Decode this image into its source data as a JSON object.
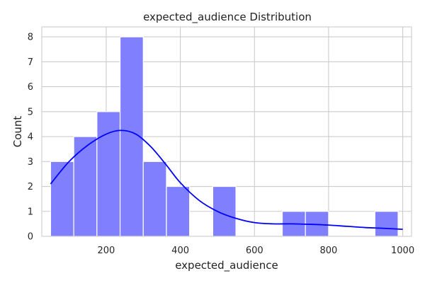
{
  "chart_data": {
    "type": "bar",
    "title": "expected_audience Distribution",
    "xlabel": "expected_audience",
    "ylabel": "Count",
    "xlim": [
      26.25,
      1023.75
    ],
    "ylim": [
      0,
      8.4
    ],
    "x_ticks": [
      200,
      400,
      600,
      800,
      1000
    ],
    "y_ticks": [
      0,
      1,
      2,
      3,
      4,
      5,
      6,
      7,
      8
    ],
    "grid": true,
    "bins": [
      {
        "start": 50,
        "end": 112.5,
        "count": 3
      },
      {
        "start": 112.5,
        "end": 175,
        "count": 4
      },
      {
        "start": 175,
        "end": 237.5,
        "count": 5
      },
      {
        "start": 237.5,
        "end": 300,
        "count": 8
      },
      {
        "start": 300,
        "end": 362.5,
        "count": 3
      },
      {
        "start": 362.5,
        "end": 425,
        "count": 2
      },
      {
        "start": 425,
        "end": 487.5,
        "count": 0
      },
      {
        "start": 487.5,
        "end": 550,
        "count": 2
      },
      {
        "start": 550,
        "end": 612.5,
        "count": 0
      },
      {
        "start": 612.5,
        "end": 675,
        "count": 0
      },
      {
        "start": 675,
        "end": 737.5,
        "count": 1
      },
      {
        "start": 737.5,
        "end": 800,
        "count": 1
      },
      {
        "start": 800,
        "end": 862.5,
        "count": 0
      },
      {
        "start": 862.5,
        "end": 925,
        "count": 0
      },
      {
        "start": 925,
        "end": 987.5,
        "count": 1
      }
    ],
    "kde": {
      "x": [
        50,
        100,
        150,
        200,
        240,
        280,
        320,
        360,
        400,
        450,
        500,
        550,
        600,
        650,
        700,
        750,
        800,
        850,
        900,
        950,
        1000
      ],
      "y": [
        2.1,
        3.0,
        3.65,
        4.1,
        4.25,
        4.1,
        3.6,
        2.9,
        2.15,
        1.45,
        1.0,
        0.72,
        0.55,
        0.5,
        0.5,
        0.48,
        0.45,
        0.4,
        0.35,
        0.32,
        0.28
      ]
    },
    "colors": {
      "bar_fill": "#8080ff",
      "bar_edge": "#ffffff",
      "kde_line": "#0000ff"
    }
  }
}
